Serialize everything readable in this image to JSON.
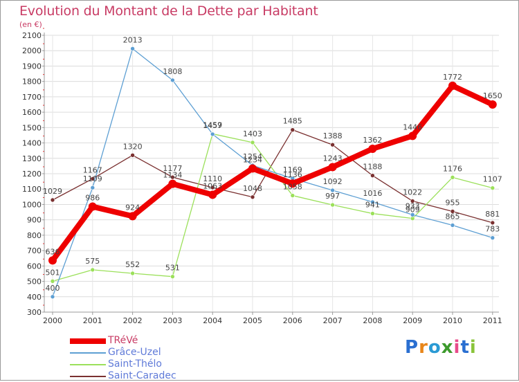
{
  "title": "Evolution du Montant de la Dette par Habitant",
  "unit": "(en €)",
  "brand": {
    "letters": [
      "P",
      "r",
      "o",
      "x",
      "i",
      "t",
      "i"
    ],
    "colors": [
      "#2a6fd1",
      "#e8861a",
      "#2a9ad4",
      "#3c9a2c",
      "#e84b8a",
      "#2a6fd1",
      "#8ac43a"
    ]
  },
  "chart_data": {
    "type": "line",
    "categories": [
      "2000",
      "2001",
      "2002",
      "2003",
      "2004",
      "2005",
      "2006",
      "2007",
      "2008",
      "2009",
      "2010",
      "2011"
    ],
    "ylim": [
      300,
      2100
    ],
    "yticks": [
      "300",
      "400",
      "500",
      "600",
      "700",
      "800",
      "900",
      "1000",
      "1100",
      "1200",
      "1300",
      "1400",
      "1500",
      "1600",
      "1700",
      "1800",
      "1900",
      "2000",
      "2100"
    ],
    "grid": true,
    "legend_position": "bottom-left",
    "series": [
      {
        "name": "TRéVé",
        "color": "#ee0000",
        "values": [
          636,
          986,
          924,
          1134,
          1063,
          1234,
          1136,
          1243,
          1362,
          1446,
          1772,
          1650
        ]
      },
      {
        "name": "Grâce-Uzel",
        "color": "#5d9fd3",
        "values": [
          400,
          1109,
          2013,
          1808,
          1457,
          1254,
          1169,
          1092,
          1016,
          933,
          865,
          783
        ]
      },
      {
        "name": "Saint-Thélo",
        "color": "#9be05a",
        "values": [
          501,
          575,
          552,
          531,
          1459,
          1403,
          1058,
          997,
          941,
          909,
          1176,
          1107
        ]
      },
      {
        "name": "Saint-Caradec",
        "color": "#7a3030",
        "values": [
          1029,
          1167,
          1320,
          1177,
          1110,
          1048,
          1485,
          1388,
          1188,
          1022,
          955,
          881
        ]
      }
    ]
  }
}
